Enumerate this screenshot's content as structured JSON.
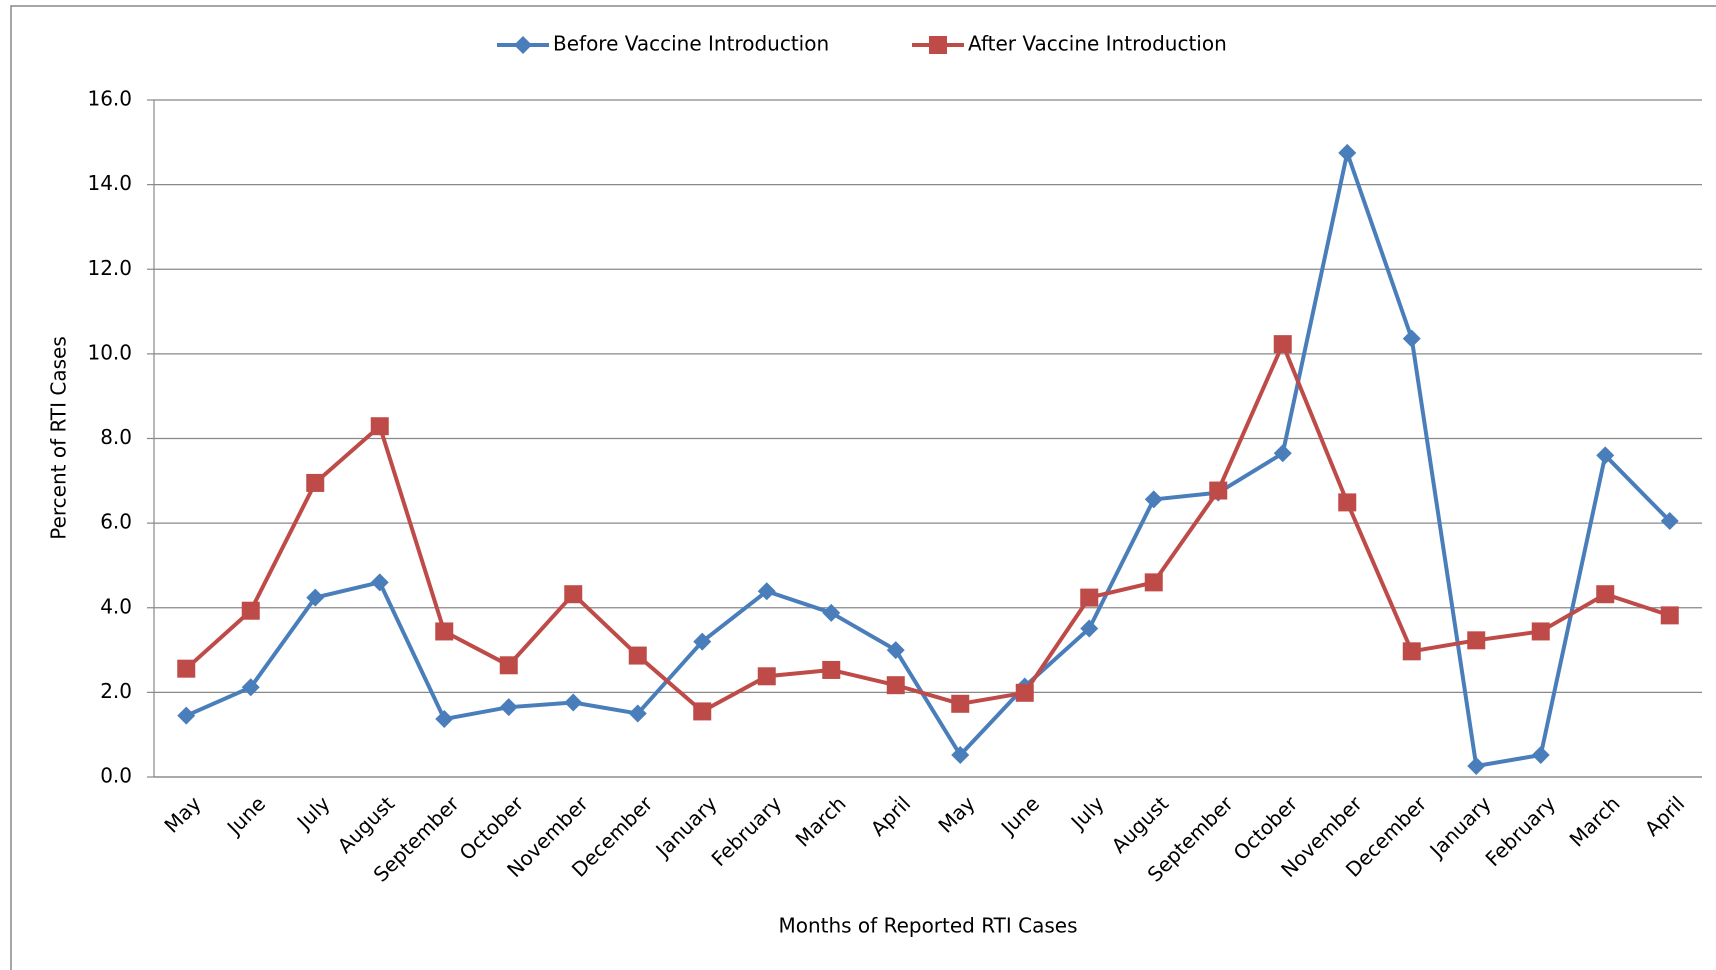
{
  "chart_data": {
    "type": "line",
    "x_label": "Months of Reported RTI Cases",
    "y_label": "Percent of RTI Cases",
    "categories": [
      "May",
      "June",
      "July",
      "August",
      "September",
      "October",
      "November",
      "December",
      "January",
      "February",
      "March",
      "April",
      "May",
      "June",
      "July",
      "August",
      "September",
      "October",
      "November",
      "December",
      "January",
      "February",
      "March",
      "April"
    ],
    "series": [
      {
        "name": "Before Vaccine Introduction",
        "color": "#4a7ebb",
        "marker": "diamond",
        "values": [
          1.45,
          2.12,
          4.24,
          4.6,
          1.37,
          1.65,
          1.76,
          1.5,
          3.2,
          4.39,
          3.88,
          3.0,
          0.52,
          2.14,
          3.51,
          6.56,
          6.72,
          7.65,
          14.75,
          10.36,
          0.26,
          0.52,
          7.6,
          6.05
        ]
      },
      {
        "name": "After Vaccine Introduction",
        "color": "#be4b48",
        "marker": "square",
        "values": [
          2.56,
          3.93,
          6.95,
          8.29,
          3.44,
          2.64,
          4.32,
          2.87,
          1.55,
          2.38,
          2.53,
          2.17,
          1.73,
          1.99,
          4.24,
          4.6,
          6.77,
          10.23,
          6.49,
          2.97,
          3.23,
          3.44,
          4.32,
          3.82
        ]
      }
    ],
    "ylim": [
      0,
      16
    ],
    "yticks": [
      {
        "value": 0,
        "label": "0.0"
      },
      {
        "value": 2,
        "label": "2.0"
      },
      {
        "value": 4,
        "label": "4.0"
      },
      {
        "value": 6,
        "label": "6.0"
      },
      {
        "value": 8,
        "label": "8.0"
      },
      {
        "value": 10,
        "label": "10.0"
      },
      {
        "value": 12,
        "label": "12.0"
      },
      {
        "value": 14,
        "label": "14.0"
      },
      {
        "value": 16,
        "label": "16.0"
      }
    ],
    "grid": true,
    "legend": "top"
  }
}
